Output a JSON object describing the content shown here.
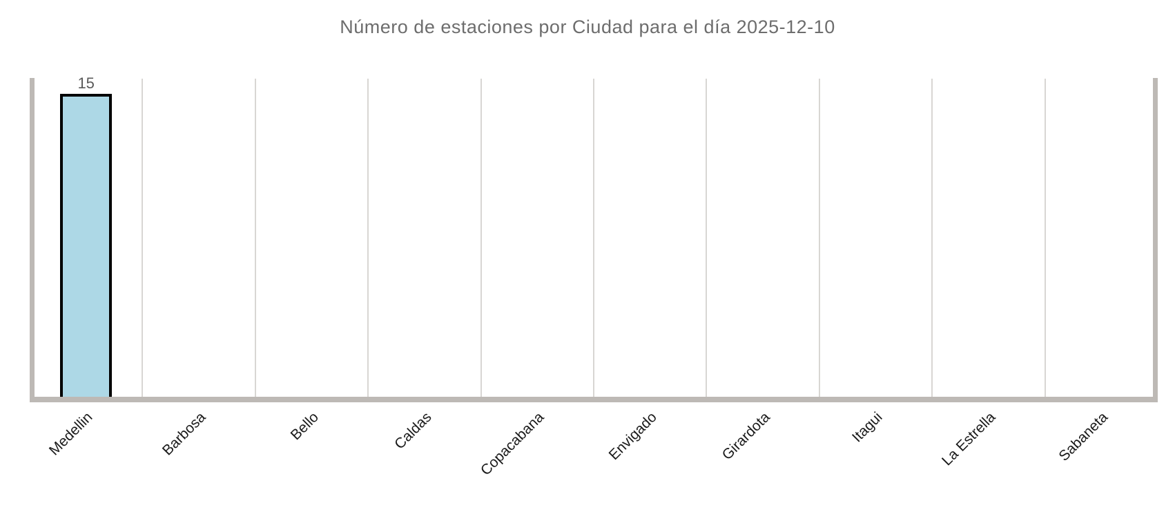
{
  "chart_data": {
    "type": "bar",
    "title": "Número de estaciones por Ciudad para el día 2025-12-10",
    "categories": [
      "Medellin",
      "Barbosa",
      "Bello",
      "Caldas",
      "Copacabana",
      "Envigado",
      "Girardota",
      "Itagui",
      "La Estrella",
      "Sabaneta"
    ],
    "values": [
      15,
      0,
      0,
      0,
      0,
      0,
      0,
      0,
      0,
      0
    ],
    "xlabel": "",
    "ylabel": "",
    "ylim": [
      0,
      15.8
    ],
    "grid": "vertical-separators-between-categories",
    "legend": "none",
    "value_labels": true,
    "x_tick_rotation_deg": 45
  },
  "colors": {
    "background": "#ffffff",
    "title_text": "#6d6d6d",
    "tick_text": "#1a1a1a",
    "value_text": "#5a5a5a",
    "spine": "#bdb9b5",
    "gridline": "#d8d6d3",
    "bar_fill": "#ADD8E6",
    "bar_border": "#000000"
  }
}
